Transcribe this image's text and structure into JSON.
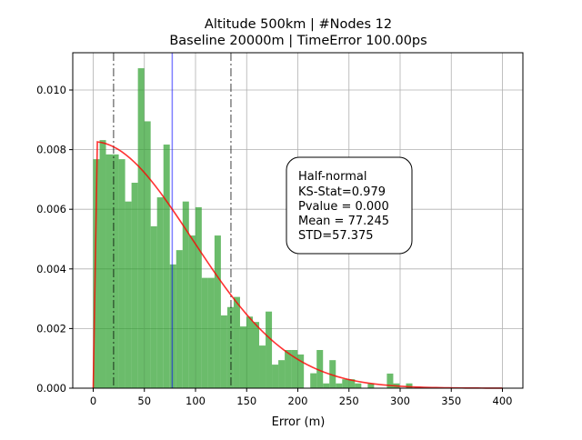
{
  "chart_data": {
    "type": "bar",
    "title": [
      "Altitude 500km | #Nodes 12",
      "Baseline 20000m | TimeError 100.00ps"
    ],
    "xlabel": "Error (m)",
    "ylabel": "",
    "xlim": [
      -20,
      420
    ],
    "ylim": [
      0,
      0.01125
    ],
    "xticks": [
      0,
      50,
      100,
      150,
      200,
      250,
      300,
      350,
      400
    ],
    "xtick_labels": [
      "0",
      "50",
      "100",
      "150",
      "200",
      "250",
      "300",
      "350",
      "400"
    ],
    "yticks": [
      0,
      0.002,
      0.004,
      0.006,
      0.008,
      0.01
    ],
    "ytick_labels": [
      "0.000",
      "0.002",
      "0.004",
      "0.006",
      "0.008",
      "0.010"
    ],
    "grid": true,
    "histogram": {
      "bin_start": 0,
      "bin_width": 6.24,
      "density": [
        0.00768,
        0.00832,
        0.00784,
        0.00784,
        0.00768,
        0.00626,
        0.00689,
        0.01073,
        0.00895,
        0.00543,
        0.0064,
        0.00817,
        0.00415,
        0.00463,
        0.00626,
        0.00512,
        0.00607,
        0.0037,
        0.0037,
        0.00512,
        0.00244,
        0.00272,
        0.00306,
        0.00207,
        0.0024,
        0.00222,
        0.00143,
        0.00257,
        0.00079,
        0.00094,
        0.00128,
        0.00128,
        0.00113,
        0,
        0.0005,
        0.00128,
        0.00016,
        0.00094,
        0.00016,
        0.0003,
        0.0003,
        0.00016,
        0,
        0.00016,
        0,
        0,
        0.00049,
        0.00016,
        0,
        0.00016
      ],
      "color": "#2ca02c"
    },
    "fit_curve": {
      "distribution": "half-normal",
      "loc": 0,
      "scale": 96.5,
      "x_range": [
        0,
        400
      ],
      "color": "#ff0000"
    },
    "vlines": [
      {
        "x": 77.245,
        "style": "solid",
        "color": "#0000ff"
      },
      {
        "x": 19.87,
        "style": "dash-dot",
        "color": "#000000"
      },
      {
        "x": 134.62,
        "style": "dash-dot",
        "color": "#000000"
      }
    ],
    "annotation": [
      "Half-normal",
      "KS-Stat=0.979",
      "Pvalue = 0.000",
      "Mean = 77.245",
      "STD=57.375"
    ]
  }
}
